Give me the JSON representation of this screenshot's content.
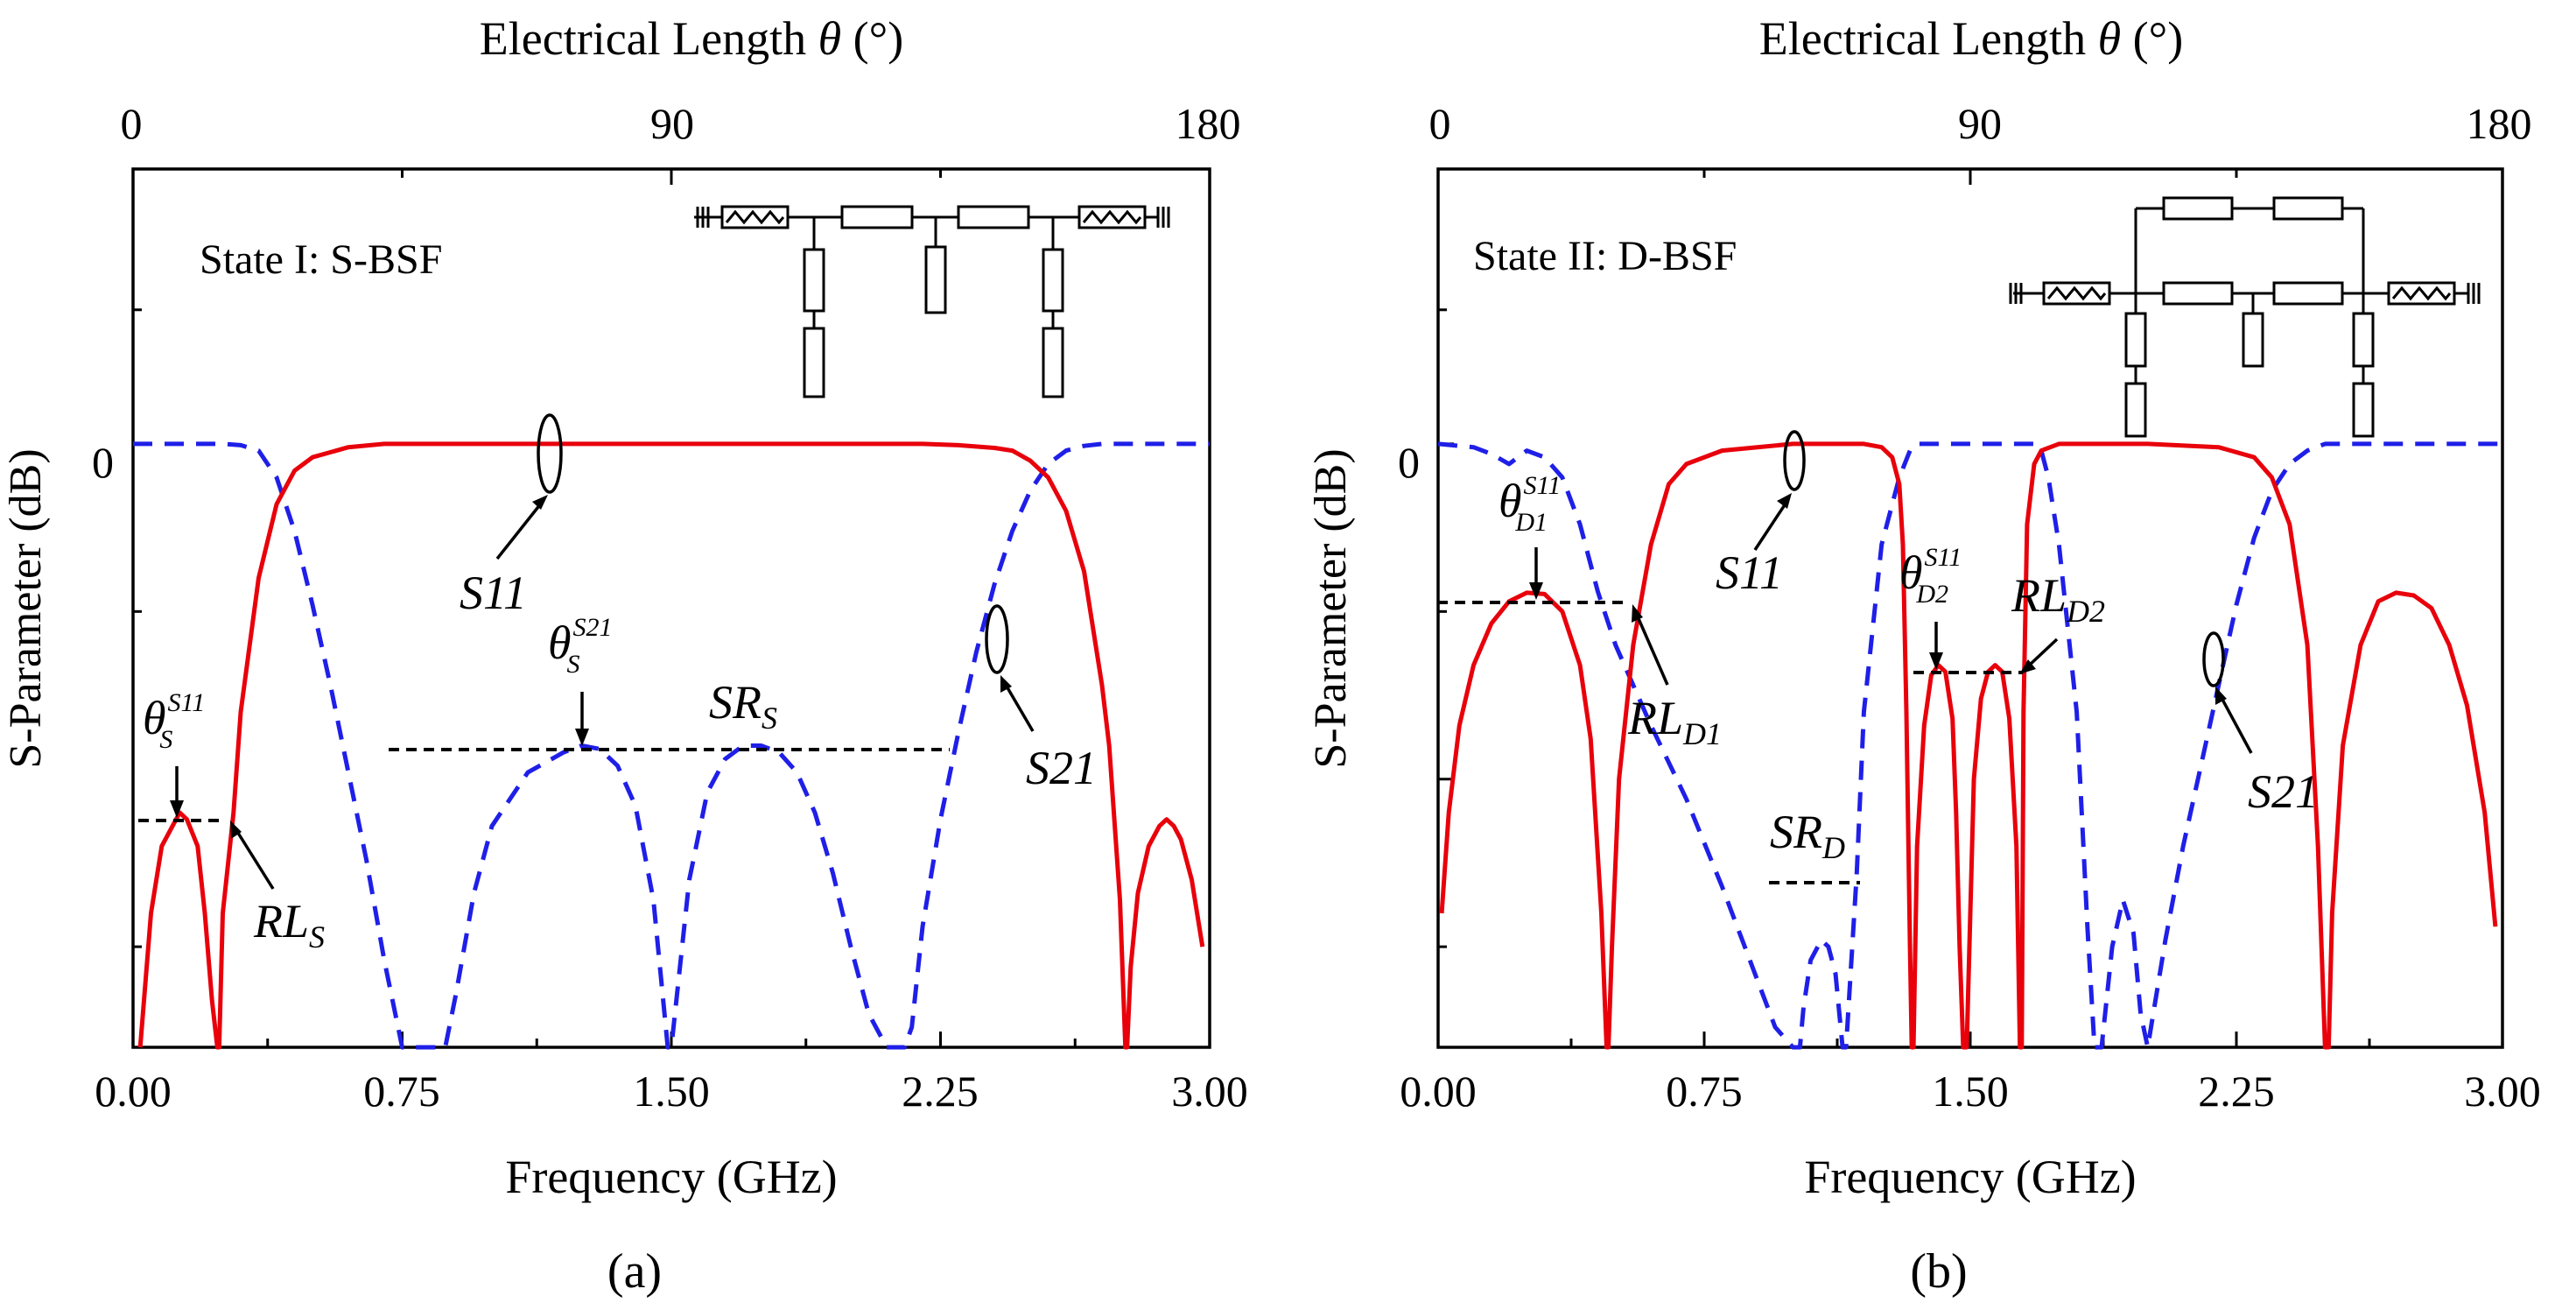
{
  "chart_data": [
    {
      "type": "line",
      "panel": "a",
      "caption": "(a)",
      "title": "State I: S-BSF",
      "xlabel": "Frequency (GHz)",
      "ylabel": "S-Parameter (dB)",
      "top_xlabel_pre": "Electrical Length",
      "top_xlabel_sym": "θ",
      "top_xlabel_post": "(°)",
      "xlim": [
        0,
        3
      ],
      "ylim": [
        -0.9,
        0.41
      ],
      "x_ticks": [
        0,
        0.75,
        1.5,
        2.25,
        3
      ],
      "x_tick_labels": [
        "0.00",
        "0.75",
        "1.50",
        "2.25",
        "3.00"
      ],
      "top_ticks": [
        0,
        90,
        180
      ],
      "top_tick_labels": [
        "0",
        "90",
        "180"
      ],
      "y_ticks": [
        0
      ],
      "y_tick_labels": [
        "0"
      ],
      "series": [
        {
          "name": "S11",
          "x": [
            0.02,
            0.05,
            0.08,
            0.11,
            0.13,
            0.15,
            0.18,
            0.2,
            0.22,
            0.235,
            0.24,
            0.25,
            0.28,
            0.3,
            0.35,
            0.4,
            0.45,
            0.5,
            0.6,
            0.7,
            0.8,
            1.0,
            1.5,
            2.0,
            2.2,
            2.3,
            2.4,
            2.45,
            2.5,
            2.55,
            2.6,
            2.65,
            2.7,
            2.72,
            2.75,
            2.765,
            2.77,
            2.78,
            2.8,
            2.83,
            2.86,
            2.88,
            2.9,
            2.92,
            2.95,
            2.98
          ],
          "y": [
            -0.9,
            -0.7,
            -0.6,
            -0.57,
            -0.55,
            -0.56,
            -0.6,
            -0.7,
            -0.83,
            -0.9,
            -0.9,
            -0.7,
            -0.55,
            -0.4,
            -0.2,
            -0.09,
            -0.04,
            -0.02,
            -0.005,
            0,
            0,
            0,
            0,
            0,
            0,
            -0.002,
            -0.006,
            -0.01,
            -0.025,
            -0.05,
            -0.1,
            -0.19,
            -0.36,
            -0.45,
            -0.68,
            -0.9,
            -0.9,
            -0.78,
            -0.67,
            -0.6,
            -0.57,
            -0.56,
            -0.57,
            -0.59,
            -0.65,
            -0.75
          ]
        },
        {
          "name": "S21",
          "x": [
            0,
            0.25,
            0.3,
            0.35,
            0.4,
            0.45,
            0.5,
            0.55,
            0.6,
            0.65,
            0.7,
            0.75,
            0.8,
            0.83,
            0.85,
            0.87,
            0.9,
            0.95,
            1.0,
            1.1,
            1.2,
            1.25,
            1.3,
            1.35,
            1.4,
            1.45,
            1.47,
            1.49,
            1.5,
            1.52,
            1.55,
            1.6,
            1.65,
            1.7,
            1.75,
            1.8,
            1.85,
            1.9,
            1.95,
            2.0,
            2.05,
            2.1,
            2.13,
            2.15,
            2.17,
            2.2,
            2.25,
            2.3,
            2.35,
            2.4,
            2.45,
            2.5,
            2.55,
            2.6,
            2.65,
            2.7,
            2.75,
            3.0
          ],
          "y": [
            0,
            0,
            -0.002,
            -0.01,
            -0.05,
            -0.13,
            -0.24,
            -0.36,
            -0.49,
            -0.62,
            -0.77,
            -0.9,
            -0.9,
            -0.9,
            -0.9,
            -0.9,
            -0.82,
            -0.67,
            -0.57,
            -0.49,
            -0.46,
            -0.45,
            -0.455,
            -0.48,
            -0.54,
            -0.68,
            -0.79,
            -0.9,
            -0.9,
            -0.8,
            -0.65,
            -0.52,
            -0.47,
            -0.45,
            -0.45,
            -0.46,
            -0.49,
            -0.55,
            -0.64,
            -0.75,
            -0.85,
            -0.9,
            -0.9,
            -0.9,
            -0.87,
            -0.72,
            -0.56,
            -0.43,
            -0.31,
            -0.21,
            -0.13,
            -0.07,
            -0.03,
            -0.01,
            -0.003,
            0,
            0,
            0
          ]
        }
      ],
      "annotations": {
        "s11_label": "S11",
        "s21_label": "S21",
        "sr_label": "SR",
        "sr_sub": "S",
        "rl_label": "RL",
        "rl_sub": "S",
        "theta_sym": "θ",
        "theta_sub": "S",
        "theta_sup_s11": "S11",
        "theta_sup_s21": "S21"
      }
    },
    {
      "type": "line",
      "panel": "b",
      "caption": "(b)",
      "title": "State II: D-BSF",
      "xlabel": "Frequency (GHz)",
      "ylabel": "S-Parameter (dB)",
      "top_xlabel_pre": "Electrical Length",
      "top_xlabel_sym": "θ",
      "top_xlabel_post": "(°)",
      "xlim": [
        0,
        3
      ],
      "ylim": [
        -0.9,
        0.41
      ],
      "x_ticks": [
        0,
        0.75,
        1.5,
        2.25,
        3
      ],
      "x_tick_labels": [
        "0.00",
        "0.75",
        "1.50",
        "2.25",
        "3.00"
      ],
      "top_ticks": [
        0,
        90,
        180
      ],
      "top_tick_labels": [
        "0",
        "90",
        "180"
      ],
      "y_ticks": [
        0,
        -0.5
      ],
      "y_tick_labels": [
        "0",
        ""
      ],
      "series": [
        {
          "name": "S11",
          "x": [
            0.01,
            0.03,
            0.06,
            0.1,
            0.15,
            0.2,
            0.25,
            0.3,
            0.35,
            0.4,
            0.43,
            0.46,
            0.475,
            0.48,
            0.49,
            0.51,
            0.55,
            0.6,
            0.65,
            0.7,
            0.8,
            0.9,
            1.0,
            1.1,
            1.2,
            1.25,
            1.28,
            1.3,
            1.31,
            1.32,
            1.33,
            1.335,
            1.34,
            1.35,
            1.37,
            1.39,
            1.41,
            1.43,
            1.45,
            1.46,
            1.47,
            1.48,
            1.49,
            1.5,
            1.51,
            1.53,
            1.55,
            1.57,
            1.59,
            1.61,
            1.63,
            1.64,
            1.645,
            1.65,
            1.66,
            1.68,
            1.7,
            1.75,
            1.8,
            2.0,
            2.2,
            2.3,
            2.35,
            2.4,
            2.45,
            2.48,
            2.5,
            2.51,
            2.52,
            2.55,
            2.6,
            2.65,
            2.7,
            2.75,
            2.8,
            2.85,
            2.9,
            2.95,
            2.98
          ],
          "y": [
            -0.7,
            -0.55,
            -0.42,
            -0.33,
            -0.268,
            -0.235,
            -0.222,
            -0.224,
            -0.25,
            -0.33,
            -0.44,
            -0.7,
            -0.9,
            -0.9,
            -0.75,
            -0.5,
            -0.3,
            -0.15,
            -0.06,
            -0.03,
            -0.01,
            -0.005,
            0,
            0,
            0,
            -0.005,
            -0.02,
            -0.06,
            -0.15,
            -0.4,
            -0.75,
            -0.9,
            -0.9,
            -0.6,
            -0.42,
            -0.345,
            -0.33,
            -0.34,
            -0.41,
            -0.55,
            -0.75,
            -0.9,
            -0.9,
            -0.7,
            -0.5,
            -0.38,
            -0.34,
            -0.33,
            -0.34,
            -0.41,
            -0.6,
            -0.9,
            -0.9,
            -0.4,
            -0.12,
            -0.03,
            -0.01,
            0,
            0,
            0,
            -0.005,
            -0.02,
            -0.05,
            -0.12,
            -0.3,
            -0.6,
            -0.9,
            -0.9,
            -0.7,
            -0.45,
            -0.3,
            -0.235,
            -0.222,
            -0.226,
            -0.245,
            -0.3,
            -0.39,
            -0.55,
            -0.72
          ]
        },
        {
          "name": "S21",
          "x": [
            0,
            0.1,
            0.15,
            0.2,
            0.25,
            0.3,
            0.35,
            0.4,
            0.45,
            0.5,
            0.6,
            0.7,
            0.8,
            0.9,
            0.95,
            1.0,
            1.02,
            1.03,
            1.05,
            1.08,
            1.1,
            1.12,
            1.14,
            1.15,
            1.18,
            1.2,
            1.25,
            1.3,
            1.33,
            1.35,
            1.4,
            1.5,
            1.6,
            1.68,
            1.7,
            1.72,
            1.75,
            1.8,
            1.83,
            1.85,
            1.87,
            1.9,
            1.93,
            1.96,
            1.98,
            2.0,
            2.05,
            2.1,
            2.15,
            2.2,
            2.25,
            2.3,
            2.35,
            2.4,
            2.45,
            2.5,
            2.6,
            3.0
          ],
          "y": [
            0,
            -0.005,
            -0.015,
            -0.03,
            -0.01,
            -0.02,
            -0.05,
            -0.12,
            -0.22,
            -0.3,
            -0.42,
            -0.53,
            -0.66,
            -0.8,
            -0.87,
            -0.9,
            -0.9,
            -0.84,
            -0.77,
            -0.74,
            -0.75,
            -0.79,
            -0.9,
            -0.9,
            -0.64,
            -0.4,
            -0.15,
            -0.05,
            -0.01,
            0,
            0,
            0,
            0,
            0,
            -0.01,
            -0.05,
            -0.15,
            -0.4,
            -0.72,
            -0.9,
            -0.9,
            -0.75,
            -0.68,
            -0.73,
            -0.85,
            -0.9,
            -0.74,
            -0.6,
            -0.48,
            -0.36,
            -0.24,
            -0.14,
            -0.07,
            -0.03,
            -0.01,
            0,
            0,
            0
          ]
        }
      ],
      "annotations": {
        "s11_label": "S11",
        "s21_label": "S21",
        "sr_label": "SR",
        "sr_sub": "D",
        "rl1_label": "RL",
        "rl1_sub": "D1",
        "rl2_label": "RL",
        "rl2_sub": "D2",
        "theta_sym": "θ",
        "theta1_sub": "D1",
        "theta2_sub": "D2",
        "theta_sup": "S11"
      }
    }
  ]
}
